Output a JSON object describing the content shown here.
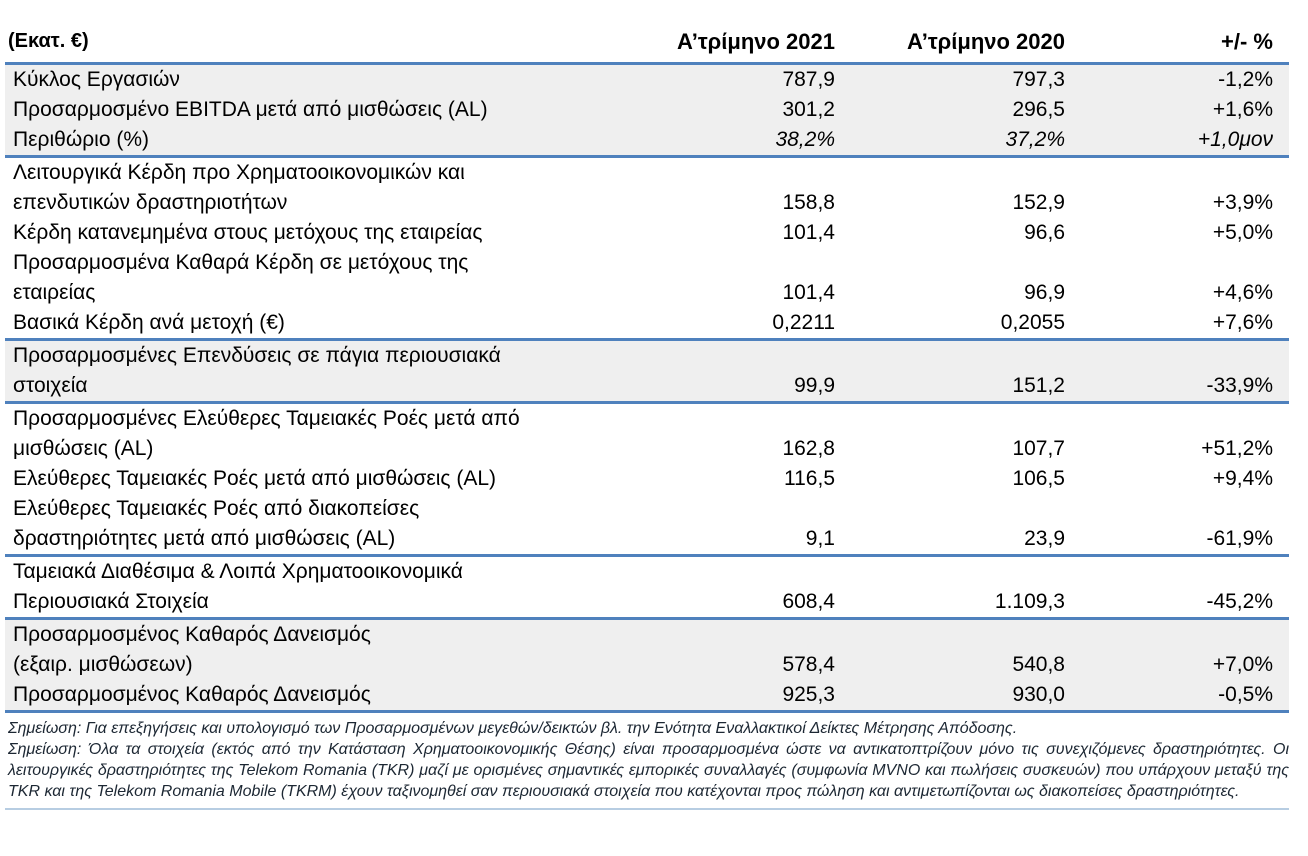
{
  "header": {
    "unit_label": "(Εκατ. €)",
    "col_2021": "Α’τρίμηνο\n2021",
    "col_2020": "Α’τρίμηνο\n2020",
    "col_change": "+/- %"
  },
  "rows": [
    {
      "label": "Κύκλος Εργασιών",
      "y2021": "787,9",
      "y2020": "797,3",
      "change": "-1,2%"
    },
    {
      "label": "Προσαρμοσμένο EBITDA μετά από μισθώσεις (AL)",
      "y2021": "301,2",
      "y2020": "296,5",
      "change": "+1,6%"
    },
    {
      "label": "Περιθώριο (%)",
      "y2021": "38,2%",
      "y2020": "37,2%",
      "change": "+1,0μον"
    },
    {
      "label": "Λειτουργικά Κέρδη προ Χρηματοοικονομικών και\nεπενδυτικών δραστηριοτήτων",
      "y2021": "158,8",
      "y2020": "152,9",
      "change": "+3,9%"
    },
    {
      "label": "Κέρδη κατανεμημένα στους μετόχους της εταιρείας",
      "y2021": "101,4",
      "y2020": "96,6",
      "change": "+5,0%"
    },
    {
      "label": "Προσαρμοσμένα Καθαρά Κέρδη σε μετόχους της\nεταιρείας",
      "y2021": "101,4",
      "y2020": "96,9",
      "change": "+4,6%"
    },
    {
      "label": "Βασικά Κέρδη ανά μετοχή (€)",
      "y2021": "0,2211",
      "y2020": "0,2055",
      "change": "+7,6%"
    },
    {
      "label": "Προσαρμοσμένες Επενδύσεις σε πάγια περιουσιακά\nστοιχεία",
      "y2021": "99,9",
      "y2020": "151,2",
      "change": "-33,9%"
    },
    {
      "label": "Προσαρμοσμένες  Ελεύθερες Ταμειακές Ροές μετά από\nμισθώσεις (AL)",
      "y2021": "162,8",
      "y2020": "107,7",
      "change": "+51,2%"
    },
    {
      "label": "Ελεύθερες Ταμειακές Ροές μετά από μισθώσεις (AL)",
      "y2021": "116,5",
      "y2020": "106,5",
      "change": "+9,4%"
    },
    {
      "label": "Ελεύθερες Ταμειακές Ροές από διακοπείσες\nδραστηριότητες μετά από μισθώσεις (AL)",
      "y2021": "9,1",
      "y2020": "23,9",
      "change": "-61,9%"
    },
    {
      "label": "Ταμειακά Διαθέσιμα & Λοιπά Χρηματοοικονομικά\nΠεριουσιακά Στοιχεία",
      "y2021": "608,4",
      "y2020": "1.109,3",
      "change": "-45,2%"
    },
    {
      "label": "Προσαρμοσμένος Καθαρός Δανεισμός\n(εξαιρ. μισθώσεων)",
      "y2021": "578,4",
      "y2020": "540,8",
      "change": "+7,0%"
    },
    {
      "label": "Προσαρμοσμένος Καθαρός Δανεισμός",
      "y2021": "925,3",
      "y2020": "930,0",
      "change": "-0,5%"
    }
  ],
  "notes": {
    "note1": "Σημείωση: Για επεξηγήσεις και υπολογισμό των Προσαρμοσμένων μεγεθών/δεικτών βλ. την Ενότητα Εναλλακτικοί Δείκτες Μέτρησης Απόδοσης.",
    "note2_l1": "Σημείωση: Όλα τα στοιχεία (εκτός από την Κατάσταση Χρηματοοικονομικής Θέσης) είναι προσαρμοσμένα ώστε να αντικατοπτρίζουν μόνο τις συνεχιζόμενες δραστηριότητες. Οι",
    "note2_l2": "λειτουργικές δραστηριότητες της Telekom Romania (TKR) μαζί με ορισμένες σημαντικές εμπορικές συναλλαγές (συμφωνία MVNO και πωλήσεις συσκευών) που υπάρχουν μεταξύ της",
    "note2_l3": "TKR και της Telekom Romania Mobile (TKRM) έχουν ταξινομηθεί σαν περιουσιακά στοιχεία που κατέχονται προς πώληση και αντιμετωπίζονται ως διακοπείσες δραστηριότητες."
  },
  "colors": {
    "separator_blue": "#4F81BD",
    "row_shade_gray": "#EFEFEF",
    "bottom_rule_light_blue": "#B7CDE2"
  }
}
